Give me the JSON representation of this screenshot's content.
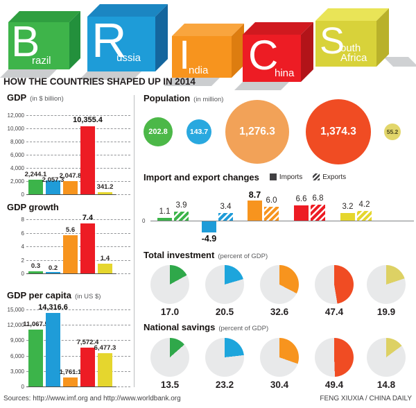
{
  "header": {
    "title": "HOW THE COUNTRIES SHAPED UP IN 2014",
    "cubes": [
      {
        "letter": "B",
        "name": "razil",
        "line2": "",
        "front": "#3eb44a",
        "top": "#2f9f40",
        "side": "#23903c"
      },
      {
        "letter": "R",
        "name": "ussia",
        "line2": "",
        "front": "#1e9cd8",
        "top": "#1b86c2",
        "side": "#14669e"
      },
      {
        "letter": "I",
        "name": "ndia",
        "line2": "",
        "front": "#f7941e",
        "top": "#f9a53e",
        "side": "#dd7d10"
      },
      {
        "letter": "C",
        "name": "hina",
        "line2": "",
        "front": "#ed1c24",
        "top": "#d0191f",
        "side": "#b21419"
      },
      {
        "letter": "S",
        "name": "outh",
        "line2": "Africa",
        "front": "#d8d23a",
        "top": "#e9e457",
        "side": "#b9b12b"
      }
    ]
  },
  "countries": [
    "Brazil",
    "Russia",
    "India",
    "China",
    "South Africa"
  ],
  "colors": {
    "bars": [
      "#3cb44a",
      "#1f9cd8",
      "#f7941e",
      "#ed1c24",
      "#e5d62e"
    ],
    "bubbles": [
      "#4cb848",
      "#29a8df",
      "#f2a258",
      "#f04c23",
      "#e2d66b"
    ],
    "bubble_text": [
      "#ffffff",
      "#ffffff",
      "#ffffff",
      "#ffffff",
      "#4d481e"
    ],
    "pies": [
      "#2fa84a",
      "#1da5dc",
      "#f7941e",
      "#f04c23",
      "#ddd164"
    ],
    "pie_bg": "#e8e9ea",
    "legend_dark": "#414042"
  },
  "chart_data": [
    {
      "type": "bar",
      "title": "GDP",
      "subtitle": "(in $ billion)",
      "categories": [
        "Brazil",
        "Russia",
        "India",
        "China",
        "South Africa"
      ],
      "values": [
        2244.1,
        2057.3,
        2047.8,
        10355.4,
        341.2
      ],
      "value_labels": [
        "2,244.1",
        "2,057.3",
        "2,047.8",
        "10,355.4",
        "341.2"
      ],
      "ylim": [
        0,
        12000
      ],
      "grid": true,
      "yticks": [
        "12,000",
        "10,000",
        "8,000",
        "6,000",
        "4,000",
        "2,000",
        "0"
      ]
    },
    {
      "type": "bar",
      "title": "GDP growth",
      "subtitle": "",
      "categories": [
        "Brazil",
        "Russia",
        "India",
        "China",
        "South Africa"
      ],
      "values": [
        0.3,
        0.2,
        5.6,
        7.4,
        1.4
      ],
      "value_labels": [
        "0.3",
        "0.2",
        "5.6",
        "7.4",
        "1.4"
      ],
      "ylim": [
        0,
        8
      ],
      "grid": true,
      "yticks": [
        "8",
        "6",
        "4",
        "2",
        "0"
      ]
    },
    {
      "type": "bar",
      "title": "GDP per capita",
      "subtitle": "(in US $)",
      "categories": [
        "Brazil",
        "Russia",
        "India",
        "China",
        "South Africa"
      ],
      "values": [
        11067.5,
        14316.6,
        1761.1,
        7572.4,
        6477.3
      ],
      "value_labels": [
        "11,067.5",
        "14,316.6",
        "1,761.1",
        "7,572.4",
        "6,477.3"
      ],
      "ylim": [
        0,
        15000
      ],
      "grid": true,
      "yticks": [
        "15,000",
        "12,000",
        "9,000",
        "6,000",
        "3,000",
        "0"
      ]
    },
    {
      "type": "bubble",
      "title": "Population",
      "subtitle": "(in million)",
      "categories": [
        "Brazil",
        "Russia",
        "India",
        "China",
        "South Africa"
      ],
      "values": [
        202.8,
        143.7,
        1276.3,
        1374.3,
        55.2
      ],
      "value_labels": [
        "202.8",
        "143.7",
        "1,276.3",
        "1,374.3",
        "55.2"
      ]
    },
    {
      "type": "grouped_bar",
      "title": "Import and export changes",
      "subtitle": "",
      "categories": [
        "Brazil",
        "Russia",
        "India",
        "China",
        "South Africa"
      ],
      "legend": [
        "Imports",
        "Exports"
      ],
      "zero_label": "0",
      "ylim": [
        -5,
        9
      ],
      "series": [
        {
          "name": "Imports",
          "values": [
            1.1,
            -4.9,
            8.7,
            6.6,
            3.2
          ],
          "labels": [
            "1.1",
            "-4.9",
            "8.7",
            "6.6",
            "3.2"
          ]
        },
        {
          "name": "Exports",
          "values": [
            3.9,
            3.4,
            6.0,
            6.8,
            4.2
          ],
          "labels": [
            "3.9",
            "3.4",
            "6.0",
            "6.8",
            "4.2"
          ]
        }
      ]
    },
    {
      "type": "pie",
      "title": "Total investment",
      "subtitle": "(percent of GDP)",
      "categories": [
        "Brazil",
        "Russia",
        "India",
        "China",
        "South Africa"
      ],
      "values": [
        17.0,
        20.5,
        32.6,
        47.4,
        19.9
      ],
      "value_labels": [
        "17.0",
        "20.5",
        "32.6",
        "47.4",
        "19.9"
      ]
    },
    {
      "type": "pie",
      "title": "National savings",
      "subtitle": "(percent of GDP)",
      "categories": [
        "Brazil",
        "Russia",
        "India",
        "China",
        "South Africa"
      ],
      "values": [
        13.5,
        23.2,
        30.4,
        49.4,
        14.8
      ],
      "value_labels": [
        "13.5",
        "23.2",
        "30.4",
        "49.4",
        "14.8"
      ]
    }
  ],
  "footer": {
    "sources": "Sources: http://www.imf.org and http://www.worldbank.org",
    "credit": "FENG XIUXIA / CHINA DAILY"
  }
}
